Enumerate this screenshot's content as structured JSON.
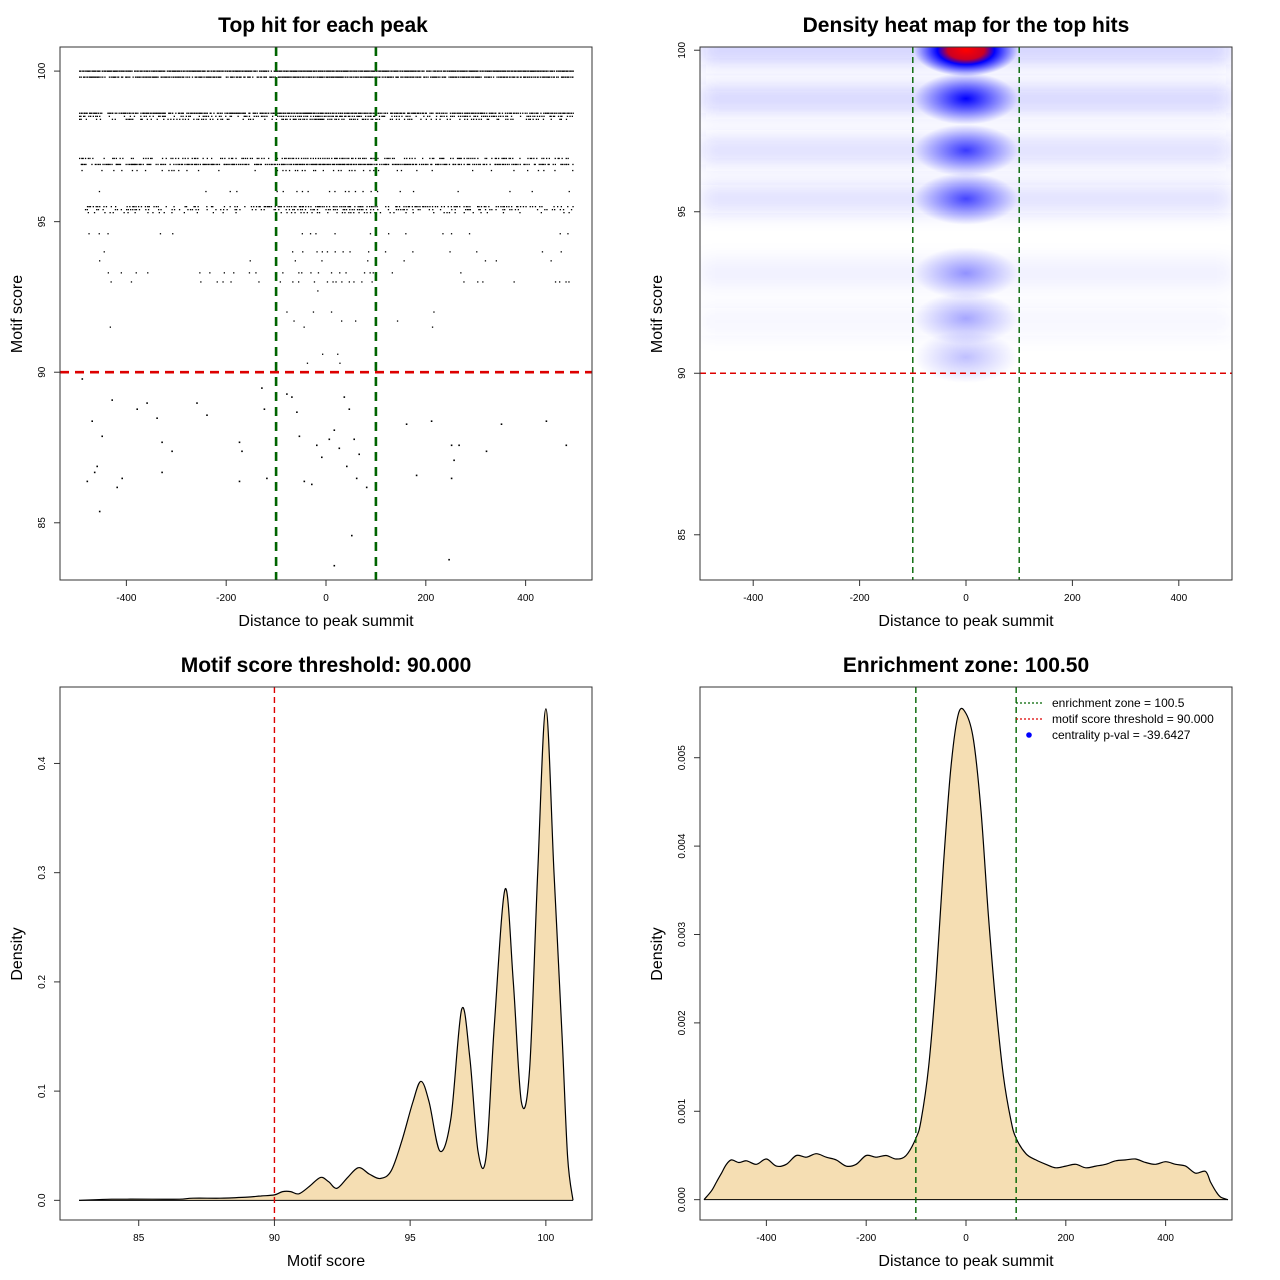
{
  "chart_data": [
    {
      "id": "scatter",
      "type": "scatter",
      "title": "Top hit for each peak",
      "xlabel": "Distance to peak summit",
      "ylabel": "Motif score",
      "xlim": [
        -533,
        533
      ],
      "ylim": [
        83.1,
        100.8
      ],
      "xticks": [
        -400,
        -200,
        0,
        200,
        400
      ],
      "yticks": [
        85,
        90,
        95,
        100
      ],
      "hlines": [
        {
          "y": 90,
          "color": "#dd0000",
          "style": "dashed"
        }
      ],
      "vlines": [
        {
          "x": -100,
          "color": "#006400",
          "style": "dashed"
        },
        {
          "x": 100,
          "color": "#006400",
          "style": "dashed"
        }
      ],
      "score_bands": [
        {
          "y": 100.0,
          "density": 0.95
        },
        {
          "y": 99.8,
          "density": 0.85
        },
        {
          "y": 98.6,
          "density": 0.85
        },
        {
          "y": 98.5,
          "density": 0.6
        },
        {
          "y": 98.4,
          "density": 0.5
        },
        {
          "y": 97.1,
          "density": 0.55
        },
        {
          "y": 96.9,
          "density": 0.75
        },
        {
          "y": 96.7,
          "density": 0.3
        },
        {
          "y": 96.0,
          "density": 0.2
        },
        {
          "y": 95.5,
          "density": 0.55
        },
        {
          "y": 95.4,
          "density": 0.45
        },
        {
          "y": 95.3,
          "density": 0.3
        },
        {
          "y": 94.6,
          "density": 0.15
        },
        {
          "y": 94.0,
          "density": 0.12
        },
        {
          "y": 93.7,
          "density": 0.12
        },
        {
          "y": 93.3,
          "density": 0.2
        },
        {
          "y": 93.0,
          "density": 0.2
        },
        {
          "y": 92.7,
          "density": 0.05
        },
        {
          "y": 92.0,
          "density": 0.08
        },
        {
          "y": 91.7,
          "density": 0.1
        },
        {
          "y": 91.5,
          "density": 0.1
        },
        {
          "y": 90.6,
          "density": 0.04
        },
        {
          "y": 90.3,
          "density": 0.04
        }
      ],
      "sparse_points": [
        [
          -490,
          89.8
        ],
        [
          -470,
          88.4
        ],
        [
          -450,
          87.9
        ],
        [
          -480,
          86.4
        ],
        [
          -460,
          86.9
        ],
        [
          -465,
          86.7
        ],
        [
          -455,
          85.4
        ],
        [
          -430,
          89.1
        ],
        [
          -420,
          86.2
        ],
        [
          -410,
          86.5
        ],
        [
          -380,
          88.8
        ],
        [
          -360,
          89.0
        ],
        [
          -340,
          88.5
        ],
        [
          -330,
          87.7
        ],
        [
          -310,
          87.4
        ],
        [
          -330,
          86.7
        ],
        [
          -260,
          89.0
        ],
        [
          -240,
          88.6
        ],
        [
          -175,
          87.7
        ],
        [
          -170,
          87.4
        ],
        [
          -175,
          86.4
        ],
        [
          -130,
          89.5
        ],
        [
          -125,
          88.8
        ],
        [
          -120,
          86.5
        ],
        [
          -80,
          89.3
        ],
        [
          -70,
          89.2
        ],
        [
          -60,
          88.7
        ],
        [
          -55,
          87.9
        ],
        [
          -45,
          86.4
        ],
        [
          -30,
          86.3
        ],
        [
          -20,
          87.6
        ],
        [
          -10,
          87.2
        ],
        [
          5,
          87.8
        ],
        [
          15,
          88.1
        ],
        [
          25,
          87.5
        ],
        [
          35,
          89.2
        ],
        [
          45,
          88.8
        ],
        [
          55,
          87.8
        ],
        [
          40,
          86.9
        ],
        [
          60,
          86.5
        ],
        [
          65,
          87.3
        ],
        [
          80,
          86.2
        ],
        [
          50,
          84.6
        ],
        [
          15,
          83.6
        ],
        [
          160,
          88.3
        ],
        [
          180,
          86.6
        ],
        [
          210,
          88.4
        ],
        [
          250,
          87.6
        ],
        [
          255,
          87.1
        ],
        [
          250,
          86.5
        ],
        [
          265,
          87.6
        ],
        [
          245,
          83.8
        ],
        [
          320,
          87.4
        ],
        [
          350,
          88.3
        ],
        [
          440,
          88.4
        ],
        [
          480,
          87.6
        ]
      ]
    },
    {
      "id": "heatmap",
      "type": "heatmap",
      "title": "Density heat map for the top hits",
      "xlabel": "Distance to peak summit",
      "ylabel": "Motif score",
      "xlim": [
        -500,
        500
      ],
      "ylim": [
        83.6,
        100.1
      ],
      "xticks": [
        -400,
        -200,
        0,
        200,
        400
      ],
      "yticks": [
        85,
        90,
        95,
        100
      ],
      "hlines": [
        {
          "y": 90,
          "color": "#dd0000",
          "style": "dashed"
        }
      ],
      "vlines": [
        {
          "x": -100,
          "color": "#006400",
          "style": "dashed"
        },
        {
          "x": 100,
          "color": "#006400",
          "style": "dashed"
        }
      ],
      "hotspots": [
        {
          "x": 0,
          "y": 100.0,
          "intensity": 1.0
        },
        {
          "x": 0,
          "y": 98.5,
          "intensity": 0.85
        },
        {
          "x": 0,
          "y": 96.9,
          "intensity": 0.6
        },
        {
          "x": 0,
          "y": 95.4,
          "intensity": 0.55
        },
        {
          "x": 0,
          "y": 93.1,
          "intensity": 0.25
        },
        {
          "x": 0,
          "y": 91.7,
          "intensity": 0.18
        },
        {
          "x": 0,
          "y": 90.5,
          "intensity": 0.1
        }
      ],
      "background_rows": [
        {
          "y": 100.0,
          "intensity": 0.22
        },
        {
          "y": 98.5,
          "intensity": 0.2
        },
        {
          "y": 96.9,
          "intensity": 0.16
        },
        {
          "y": 95.4,
          "intensity": 0.14
        },
        {
          "y": 93.1,
          "intensity": 0.06
        },
        {
          "y": 91.6,
          "intensity": 0.05
        }
      ]
    },
    {
      "id": "score-density",
      "type": "area",
      "title": "Motif score threshold: 90.000",
      "xlabel": "Motif score",
      "ylabel": "Density",
      "xlim": [
        82.1,
        101.7
      ],
      "ylim": [
        -0.018,
        0.47
      ],
      "xticks": [
        85,
        90,
        95,
        100
      ],
      "yticks": [
        0.0,
        0.1,
        0.2,
        0.3,
        0.4
      ],
      "ytick_labels": [
        "0.0",
        "0.1",
        "0.2",
        "0.3",
        "0.4"
      ],
      "fill": "#f5deb3",
      "vlines": [
        {
          "x": 90,
          "color": "#dd0000",
          "style": "dashed"
        }
      ],
      "x": [
        82.8,
        84.0,
        85.5,
        86.5,
        87.0,
        88.0,
        89.0,
        89.5,
        90.0,
        90.3,
        90.6,
        90.9,
        91.3,
        91.7,
        92.0,
        92.3,
        92.7,
        93.1,
        93.5,
        93.9,
        94.3,
        94.7,
        95.1,
        95.4,
        95.7,
        96.1,
        96.5,
        96.9,
        97.2,
        97.5,
        97.8,
        98.1,
        98.5,
        98.8,
        99.1,
        99.4,
        99.7,
        100.0,
        100.3,
        100.6,
        100.8,
        101.0
      ],
      "y": [
        0.0,
        0.001,
        0.001,
        0.001,
        0.002,
        0.002,
        0.003,
        0.004,
        0.005,
        0.008,
        0.008,
        0.006,
        0.013,
        0.021,
        0.017,
        0.011,
        0.021,
        0.03,
        0.024,
        0.02,
        0.027,
        0.055,
        0.09,
        0.109,
        0.09,
        0.045,
        0.075,
        0.175,
        0.13,
        0.045,
        0.04,
        0.16,
        0.285,
        0.2,
        0.09,
        0.12,
        0.3,
        0.45,
        0.3,
        0.15,
        0.04,
        0.0
      ]
    },
    {
      "id": "distance-density",
      "type": "area",
      "title": "Enrichment zone: 100.50",
      "xlabel": "Distance to peak summit",
      "ylabel": "Density",
      "xlim": [
        -533,
        533
      ],
      "ylim": [
        -0.00023,
        0.0058
      ],
      "xticks": [
        -400,
        -200,
        0,
        200,
        400
      ],
      "yticks": [
        0.0,
        0.001,
        0.002,
        0.003,
        0.004,
        0.005
      ],
      "ytick_labels": [
        "0.000",
        "0.001",
        "0.002",
        "0.003",
        "0.004",
        "0.005"
      ],
      "fill": "#f5deb3",
      "vlines": [
        {
          "x": -100.5,
          "color": "#006400",
          "style": "dashed"
        },
        {
          "x": 100.5,
          "color": "#006400",
          "style": "dashed"
        }
      ],
      "x": [
        -525,
        -510,
        -500,
        -490,
        -480,
        -470,
        -455,
        -440,
        -420,
        -400,
        -380,
        -360,
        -340,
        -320,
        -300,
        -280,
        -260,
        -240,
        -220,
        -200,
        -180,
        -160,
        -140,
        -120,
        -100,
        -90,
        -75,
        -60,
        -45,
        -30,
        -15,
        0,
        15,
        30,
        45,
        60,
        75,
        90,
        100,
        120,
        140,
        160,
        180,
        200,
        220,
        240,
        260,
        280,
        300,
        320,
        340,
        360,
        380,
        400,
        420,
        440,
        460,
        480,
        490,
        500,
        510,
        525
      ],
      "y": [
        0.0,
        0.0001,
        0.0002,
        0.0003,
        0.0004,
        0.00045,
        0.00042,
        0.00044,
        0.0004,
        0.00046,
        0.00038,
        0.0004,
        0.0005,
        0.00048,
        0.00052,
        0.00048,
        0.00045,
        0.00038,
        0.0004,
        0.0005,
        0.00048,
        0.0005,
        0.00046,
        0.0005,
        0.0007,
        0.0009,
        0.0015,
        0.0025,
        0.0038,
        0.0049,
        0.0055,
        0.0055,
        0.0052,
        0.0044,
        0.0032,
        0.0022,
        0.0014,
        0.0009,
        0.0007,
        0.00052,
        0.00045,
        0.0004,
        0.00036,
        0.00038,
        0.0004,
        0.00036,
        0.00038,
        0.0004,
        0.00044,
        0.00045,
        0.00046,
        0.00042,
        0.0004,
        0.00043,
        0.0004,
        0.00038,
        0.0003,
        0.00032,
        0.0002,
        0.0001,
        3e-05,
        0.0
      ],
      "legend": {
        "position": "top-right",
        "entries": [
          {
            "label": "enrichment zone = 100.5",
            "color": "#006400",
            "kind": "line"
          },
          {
            "label": "motif score threshold = 90.000",
            "color": "#dd0000",
            "kind": "line"
          },
          {
            "label": "centrality p-val = -39.6427",
            "color": "#0000ff",
            "kind": "point"
          }
        ]
      }
    }
  ]
}
